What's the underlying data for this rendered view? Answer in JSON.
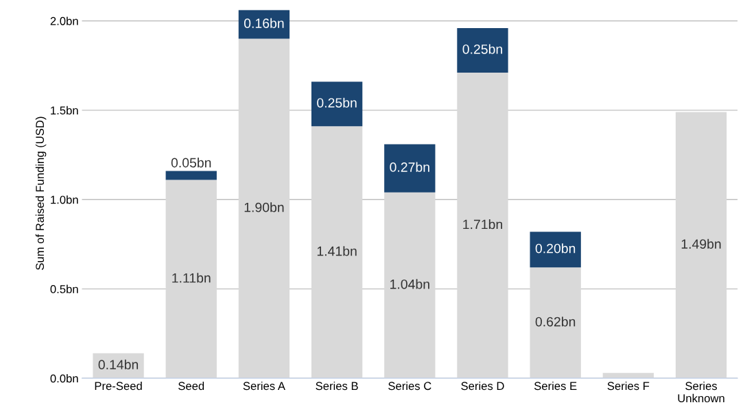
{
  "chart_data": {
    "type": "bar",
    "stacked": true,
    "ylabel": "Sum of Raised Funding (USD)",
    "categories": [
      "Pre-Seed",
      "Seed",
      "Series A",
      "Series B",
      "Series C",
      "Series D",
      "Series E",
      "Series F",
      "Series Unknown"
    ],
    "series": [
      {
        "color": "#d9d9d9",
        "values": [
          0.14,
          1.11,
          1.9,
          1.41,
          1.04,
          1.71,
          0.62,
          0.03,
          1.49
        ],
        "value_labels": [
          "0.14bn",
          "1.11bn",
          "1.90bn",
          "1.41bn",
          "1.04bn",
          "1.71bn",
          "0.62bn",
          null,
          "1.49bn"
        ]
      },
      {
        "color": "#1b4571",
        "values": [
          null,
          0.05,
          0.16,
          0.25,
          0.27,
          0.25,
          0.2,
          null,
          null
        ],
        "value_labels": [
          null,
          "0.05bn",
          "0.16bn",
          "0.25bn",
          "0.27bn",
          "0.25bn",
          "0.20bn",
          null,
          null
        ]
      }
    ],
    "ylim": [
      0,
      2.07
    ],
    "yticks": [
      {
        "value": 0,
        "label": "0.0bn"
      },
      {
        "value": 0.5,
        "label": "0.5bn"
      },
      {
        "value": 1.0,
        "label": "1.0bn"
      },
      {
        "value": 1.5,
        "label": "1.5bn"
      },
      {
        "value": 2.0,
        "label": "2.0bn"
      }
    ],
    "grid": "y",
    "legend": false
  }
}
